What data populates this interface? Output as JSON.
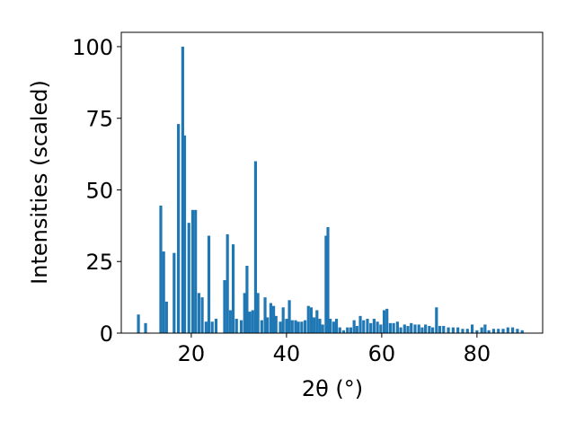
{
  "chart_data": {
    "type": "bar",
    "x_label": "2θ (°)",
    "y_label": "Intensities (scaled)",
    "color": "#1f77b4",
    "x": [
      8.9,
      10.4,
      13.6,
      14.2,
      14.8,
      16.4,
      17.3,
      18.2,
      18.6,
      19.5,
      20.3,
      20.9,
      21.6,
      22.3,
      23.1,
      23.7,
      24.4,
      25.2,
      27.0,
      27.6,
      28.2,
      28.8,
      29.5,
      30.5,
      31.2,
      31.7,
      32.3,
      32.9,
      33.5,
      34.0,
      34.8,
      35.5,
      36.0,
      36.7,
      37.3,
      37.8,
      38.7,
      39.3,
      40.0,
      40.6,
      41.2,
      41.9,
      42.5,
      43.2,
      43.9,
      44.6,
      45.2,
      45.8,
      46.4,
      47.0,
      47.6,
      48.3,
      48.7,
      49.2,
      49.9,
      50.5,
      51.2,
      52.0,
      52.8,
      53.5,
      54.2,
      54.8,
      55.5,
      56.2,
      57.0,
      57.7,
      58.4,
      59.1,
      59.8,
      60.5,
      61.1,
      61.8,
      62.5,
      63.3,
      64.0,
      64.8,
      65.5,
      66.2,
      67.0,
      67.8,
      68.5,
      69.2,
      70.0,
      70.7,
      71.5,
      72.2,
      73.0,
      74.0,
      75.0,
      76.0,
      77.0,
      78.0,
      79.0,
      80.0,
      81.0,
      81.7,
      82.5,
      83.5,
      84.5,
      85.5,
      86.5,
      87.5,
      88.5,
      89.5
    ],
    "values": [
      6.5,
      3.5,
      44.5,
      28.5,
      11,
      28,
      73,
      100,
      69,
      38.5,
      43,
      43,
      14,
      12.5,
      4,
      34,
      4,
      5,
      18.5,
      34.5,
      8,
      31,
      5,
      4.5,
      14,
      23.5,
      7.5,
      8,
      60,
      14,
      4.5,
      12.5,
      5.5,
      10.5,
      9.5,
      6,
      4,
      9,
      5,
      11.5,
      4.5,
      4.5,
      4,
      4,
      4.5,
      9.5,
      9,
      5.5,
      8,
      5,
      3,
      34,
      37,
      5,
      4,
      5,
      2,
      1,
      2,
      2,
      4.5,
      2.5,
      6,
      4.5,
      5,
      3.5,
      5,
      4,
      3,
      8,
      8.5,
      3.5,
      3.5,
      4,
      2,
      3,
      2.5,
      3.5,
      3,
      3,
      2,
      3,
      2.5,
      2,
      9,
      2.5,
      2.5,
      2,
      2,
      2,
      1.5,
      1.5,
      3,
      1,
      2,
      3,
      1,
      1.5,
      1.5,
      1.5,
      2,
      2,
      1.5,
      1
    ],
    "xlim": [
      5.3,
      93.8
    ],
    "ylim": [
      0,
      105
    ],
    "xticks": [
      20,
      40,
      60,
      80
    ],
    "yticks": [
      0,
      25,
      50,
      75,
      100
    ]
  }
}
